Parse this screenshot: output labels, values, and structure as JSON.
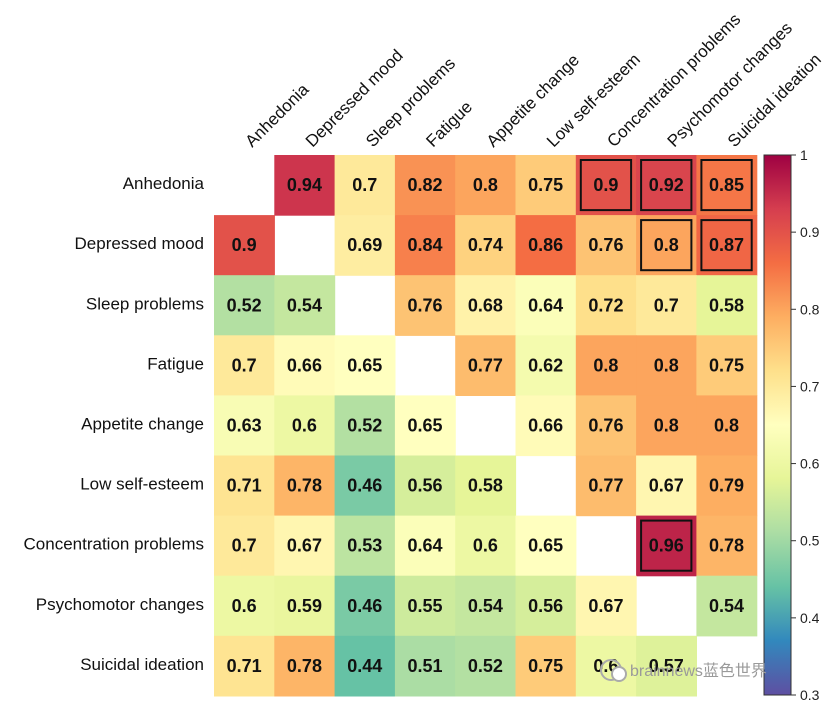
{
  "chart_data": {
    "type": "heatmap",
    "title": "",
    "row_labels": [
      "Anhedonia",
      "Depressed mood",
      "Sleep problems",
      "Fatigue",
      "Appetite change",
      "Low self-esteem",
      "Concentration problems",
      "Psychomotor changes",
      "Suicidal ideation"
    ],
    "col_labels": [
      "Anhedonia",
      "Depressed mood",
      "Sleep problems",
      "Fatigue",
      "Appetite change",
      "Low self-esteem",
      "Concentration problems",
      "Psychomotor changes",
      "Suicidal ideation"
    ],
    "values": [
      [
        null,
        0.94,
        0.7,
        0.82,
        0.8,
        0.75,
        0.9,
        0.92,
        0.85
      ],
      [
        0.9,
        null,
        0.69,
        0.84,
        0.74,
        0.86,
        0.76,
        0.8,
        0.87
      ],
      [
        0.52,
        0.54,
        null,
        0.76,
        0.68,
        0.64,
        0.72,
        0.7,
        0.58
      ],
      [
        0.7,
        0.66,
        0.65,
        null,
        0.77,
        0.62,
        0.8,
        0.8,
        0.75
      ],
      [
        0.63,
        0.6,
        0.52,
        0.65,
        null,
        0.66,
        0.76,
        0.8,
        0.8
      ],
      [
        0.71,
        0.78,
        0.46,
        0.56,
        0.58,
        null,
        0.77,
        0.67,
        0.79
      ],
      [
        0.7,
        0.67,
        0.53,
        0.64,
        0.6,
        0.65,
        null,
        0.96,
        0.78
      ],
      [
        0.6,
        0.59,
        0.46,
        0.55,
        0.54,
        0.56,
        0.67,
        null,
        0.54
      ],
      [
        0.71,
        0.78,
        0.44,
        0.51,
        0.52,
        0.75,
        0.6,
        0.57,
        null
      ]
    ],
    "highlighted_cells": [
      [
        0,
        6
      ],
      [
        0,
        7
      ],
      [
        0,
        8
      ],
      [
        1,
        7
      ],
      [
        1,
        8
      ],
      [
        6,
        7
      ]
    ],
    "colorbar": {
      "min": 0.3,
      "max": 1,
      "ticks": [
        "0.3",
        "0.4",
        "0.5",
        "0.6",
        "0.7",
        "0.8",
        "0.9",
        "1"
      ],
      "colormap": "Spectral_r"
    }
  },
  "watermark": {
    "text": "brainnews蓝色世界"
  }
}
